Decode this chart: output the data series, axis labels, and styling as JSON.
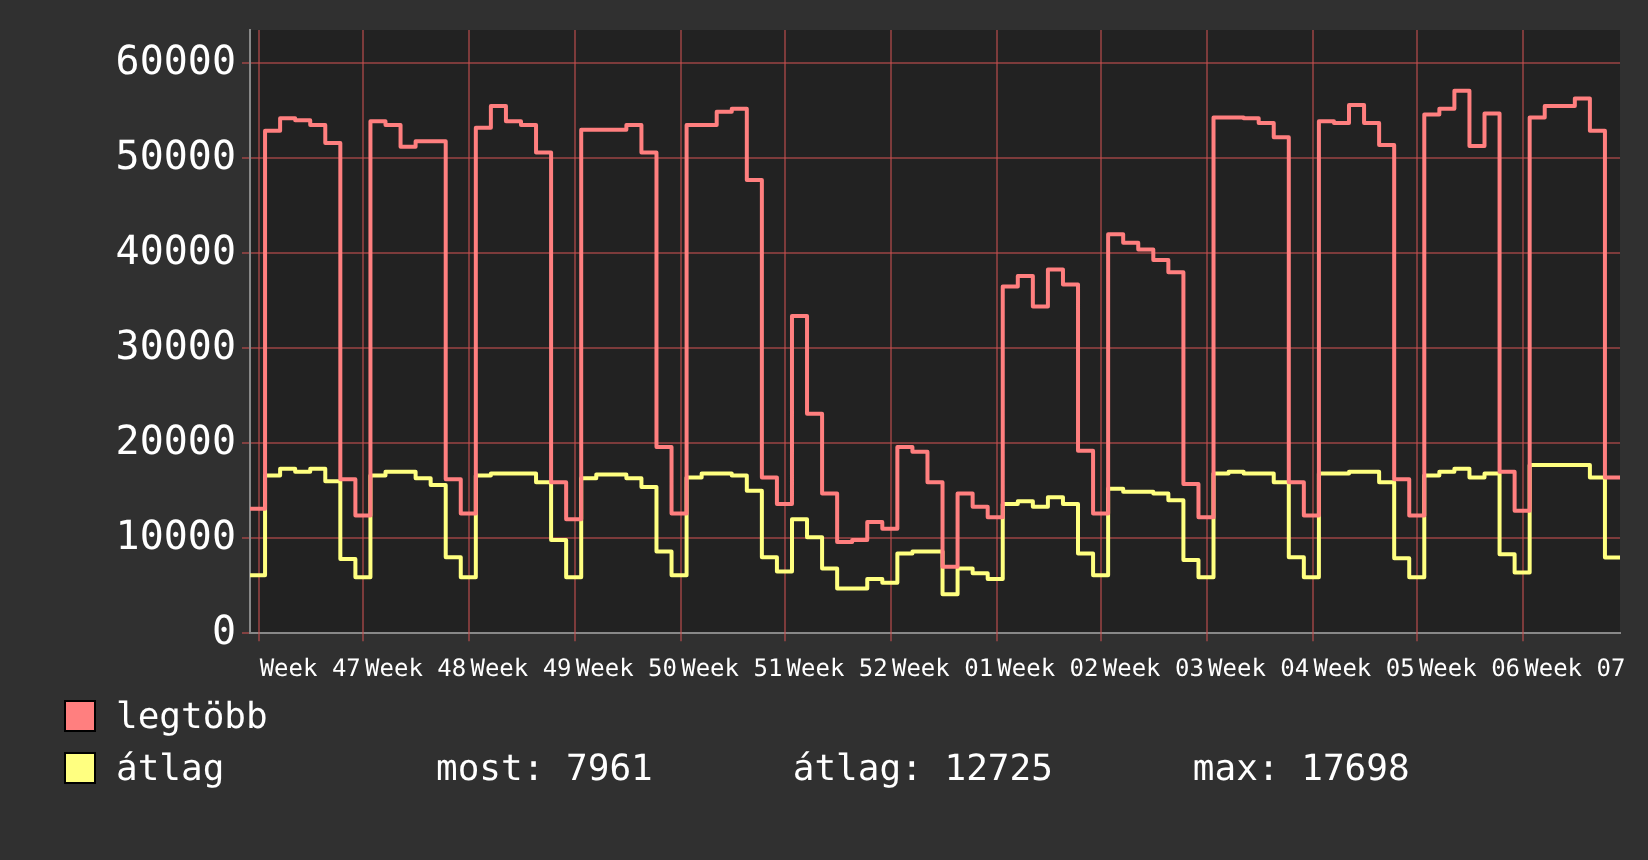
{
  "chart_data": {
    "type": "step",
    "categories": [
      null,
      null,
      null,
      null,
      "Week 47",
      null,
      null,
      null,
      null,
      null,
      null,
      "Week 48",
      null,
      null,
      null,
      null,
      null,
      null,
      "Week 49",
      null,
      null,
      null,
      null,
      null,
      null,
      "Week 50",
      null,
      null,
      null,
      null,
      null,
      null,
      "Week 51",
      null,
      null,
      null,
      null,
      null,
      null,
      "Week 52",
      null,
      null,
      null,
      null,
      null,
      null,
      "Week 01",
      null,
      null,
      null,
      null,
      null,
      null,
      "Week 02",
      null,
      null,
      null,
      null,
      null,
      null,
      "Week 03",
      null,
      null,
      null,
      null,
      null,
      null,
      "Week 04",
      null,
      null,
      null,
      null,
      null,
      null,
      "Week 05",
      null,
      null,
      null,
      null,
      null,
      null,
      "Week 06",
      null,
      null,
      null,
      null,
      null,
      null,
      "Week 07",
      null,
      null,
      null
    ],
    "series": [
      {
        "name": "legtöbb",
        "color": "#ff7f7f",
        "values": [
          13100,
          52900,
          54200,
          54000,
          53500,
          51600,
          16200,
          12400,
          53900,
          53500,
          51200,
          51800,
          51800,
          16200,
          12600,
          53200,
          55500,
          53900,
          53500,
          50600,
          15900,
          12000,
          53000,
          53000,
          53000,
          53500,
          50600,
          19600,
          12600,
          53500,
          53500,
          54900,
          55200,
          47700,
          16400,
          13600,
          33400,
          23100,
          14700,
          9600,
          9800,
          11700,
          11000,
          19600,
          19100,
          15900,
          7000,
          14700,
          13300,
          12200,
          36500,
          37600,
          34400,
          38300,
          36700,
          19200,
          12600,
          42000,
          41100,
          40400,
          39300,
          38000,
          15700,
          12200,
          54300,
          54300,
          54200,
          53700,
          52200,
          15900,
          12400,
          53900,
          53700,
          55600,
          53700,
          51400,
          16200,
          12400,
          54600,
          55200,
          57100,
          51300,
          54700,
          17000,
          12900,
          54300,
          55500,
          55500,
          56300,
          52900,
          16400,
          16400
        ]
      },
      {
        "name": "átlag",
        "color": "#ffff80",
        "values": [
          6100,
          16600,
          17300,
          17000,
          17300,
          16000,
          7800,
          5900,
          16600,
          17000,
          17000,
          16300,
          15600,
          8000,
          5900,
          16600,
          16800,
          16800,
          16800,
          15900,
          9800,
          5900,
          16300,
          16700,
          16700,
          16300,
          15400,
          8600,
          6100,
          16400,
          16800,
          16800,
          16600,
          15000,
          8000,
          6500,
          12000,
          10100,
          6800,
          4700,
          4700,
          5700,
          5300,
          8400,
          8600,
          8600,
          4100,
          6800,
          6300,
          5700,
          13600,
          13900,
          13300,
          14300,
          13600,
          8400,
          6100,
          15200,
          14900,
          14900,
          14700,
          14000,
          7700,
          5900,
          16800,
          17000,
          16800,
          16800,
          15900,
          8000,
          5900,
          16800,
          16800,
          17000,
          17000,
          15900,
          7900,
          5900,
          16600,
          17000,
          17300,
          16400,
          16800,
          8300,
          6400,
          17698,
          17698,
          17698,
          17698,
          16400,
          7961,
          7961
        ]
      }
    ],
    "ylim": [
      0,
      63500
    ],
    "yticks": [
      0,
      10000,
      20000,
      30000,
      40000,
      50000,
      60000
    ],
    "grid": true,
    "legend": "bottom",
    "marker": "none",
    "line_style": "solid",
    "annotations": [
      "most: 7961",
      "átlag: 12725",
      "max: 17698"
    ]
  }
}
